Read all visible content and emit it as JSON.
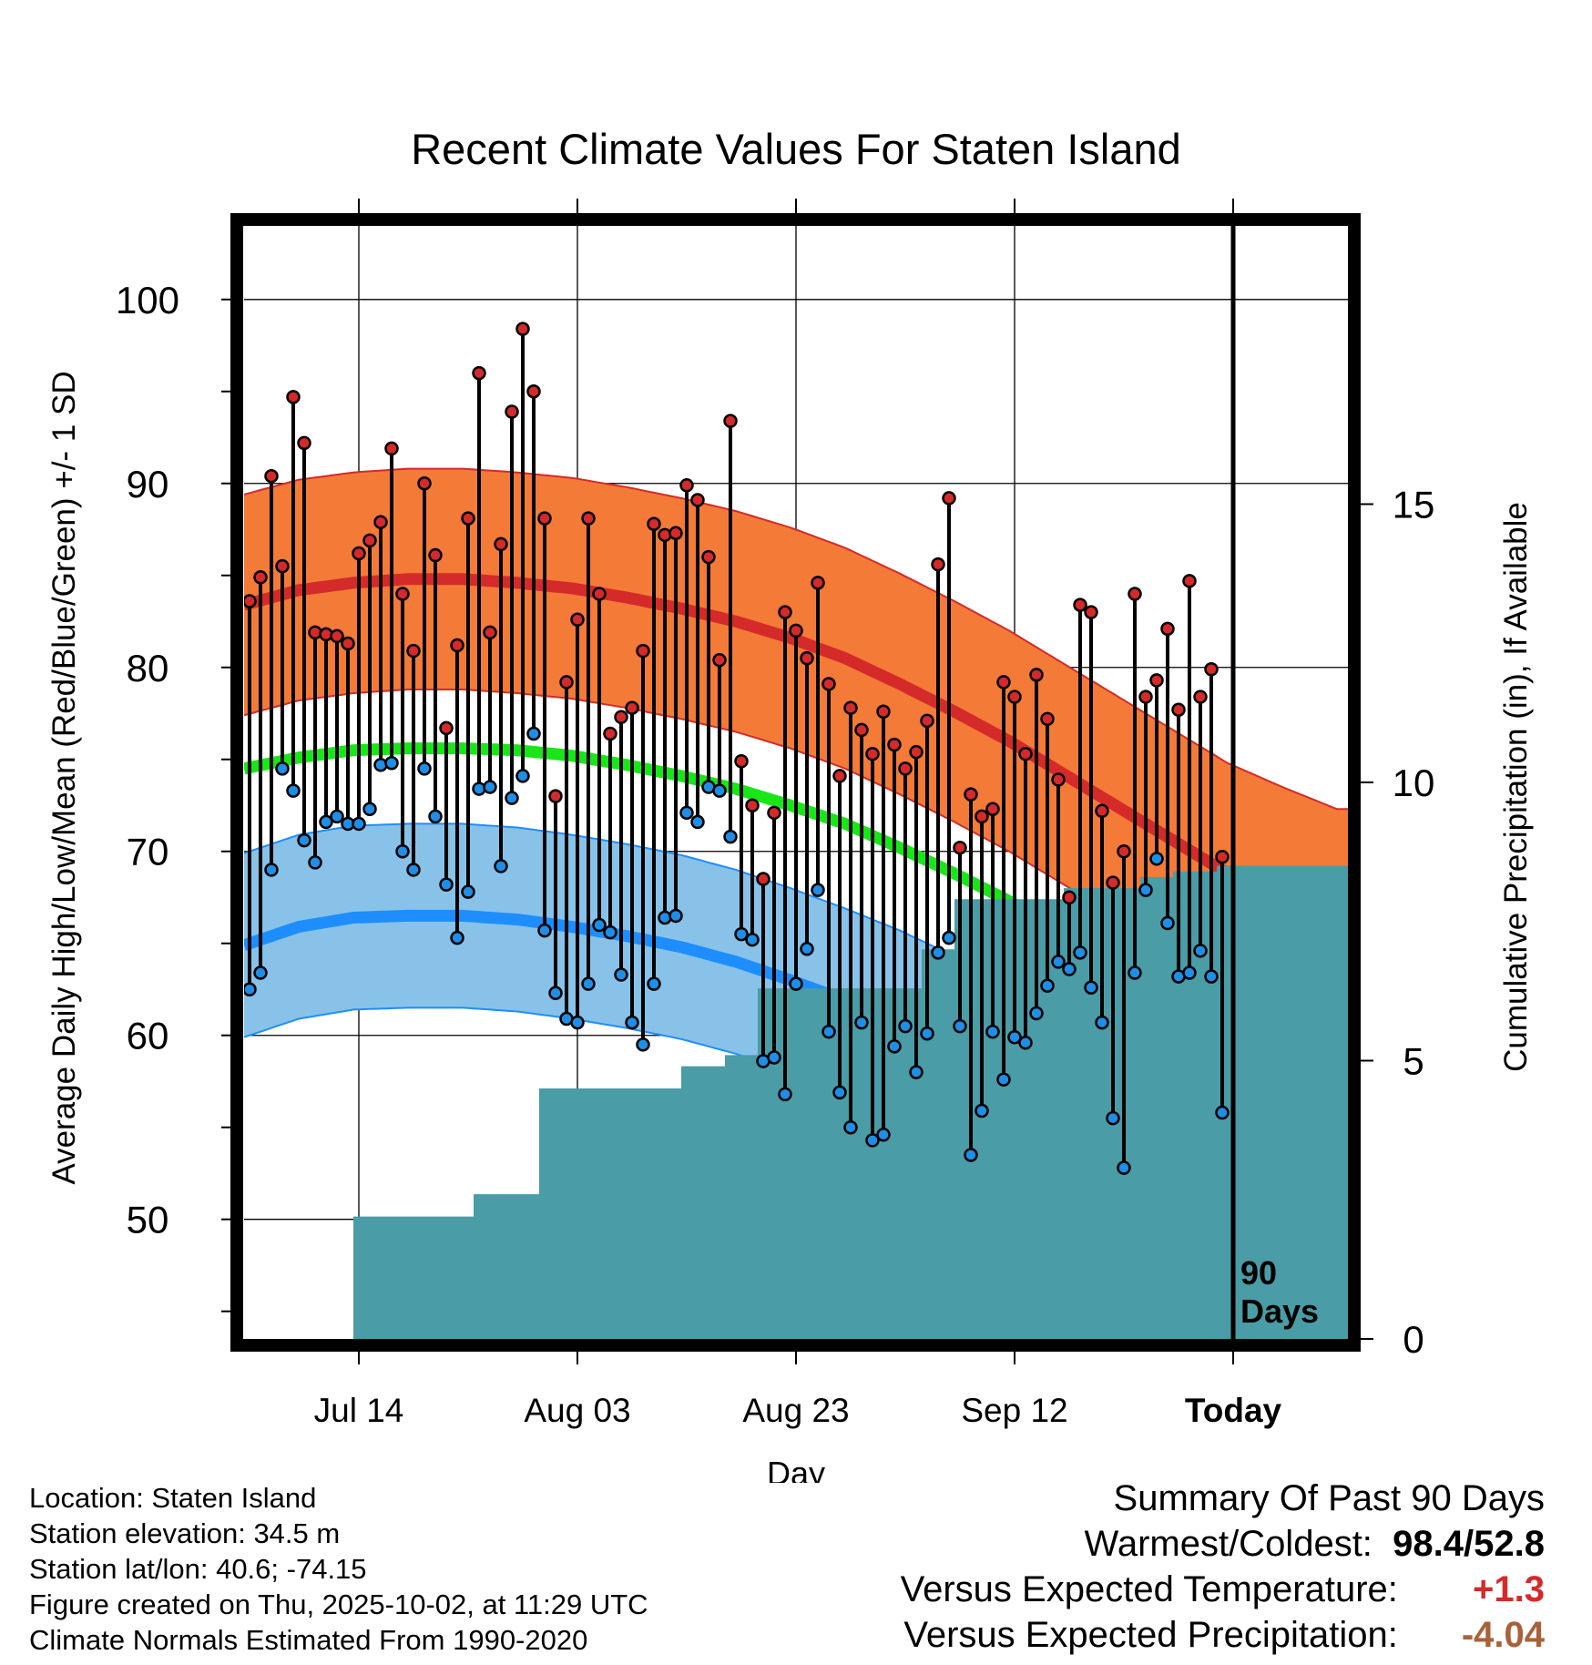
{
  "chart_data": {
    "type": "line",
    "title": "Recent Climate Values For Staten Island",
    "xlabel": "Day",
    "ylabel": "Average Daily High/Low/Mean (Red/Blue/Green) +/- 1 SD",
    "y2label": "Cumulative Precipitation (in), If Available",
    "ylim": [
      43.5,
      104
    ],
    "y2lim": [
      0,
      20
    ],
    "yticks": [
      50,
      60,
      70,
      80,
      90,
      100
    ],
    "y2ticks": [
      0,
      5,
      10,
      15
    ],
    "xlim": [
      0,
      101
    ],
    "xticks": [
      {
        "day": 10.5,
        "label": "Jul 14"
      },
      {
        "day": 30.5,
        "label": "Aug 03"
      },
      {
        "day": 50.5,
        "label": "Aug 23"
      },
      {
        "day": 70.5,
        "label": "Sep 12"
      },
      {
        "day": 90.5,
        "label": "Today"
      }
    ],
    "today_day": 90.5,
    "today_label": [
      "90",
      "Days"
    ],
    "normals": {
      "days": [
        0,
        5,
        10,
        15,
        20,
        25,
        30,
        35,
        40,
        45,
        50,
        55,
        60,
        65,
        70,
        75,
        80,
        85,
        90,
        95,
        100
      ],
      "high_mean": [
        83.4,
        84.2,
        84.6,
        84.8,
        84.8,
        84.6,
        84.3,
        83.8,
        83.2,
        82.5,
        81.6,
        80.5,
        79.1,
        77.6,
        76.0,
        74.2,
        72.4,
        70.6,
        68.8,
        67.5,
        66.3
      ],
      "high_sd": 6.0,
      "low_mean": [
        64.9,
        65.9,
        66.4,
        66.5,
        66.5,
        66.3,
        65.9,
        65.4,
        64.8,
        64.0,
        63.0,
        61.9,
        60.7,
        59.3,
        57.7,
        56.0,
        54.2,
        52.4,
        50.5,
        48.5,
        46.5
      ],
      "low_sd": 5.0,
      "mean": [
        74.5,
        75.1,
        75.5,
        75.6,
        75.6,
        75.5,
        75.2,
        74.7,
        74.1,
        73.4,
        72.5,
        71.5,
        70.2,
        68.8,
        67.3,
        65.6,
        63.8,
        62.0,
        60.3,
        58.8,
        57.4
      ]
    },
    "series": [
      {
        "name": "Daily High",
        "color": "#cc2222",
        "values": [
          83.6,
          84.9,
          90.4,
          85.5,
          94.7,
          92.2,
          81.9,
          81.8,
          81.7,
          81.3,
          86.2,
          86.9,
          87.9,
          91.9,
          84.0,
          80.9,
          90.0,
          86.1,
          76.7,
          81.2,
          88.1,
          96.0,
          81.9,
          86.7,
          93.9,
          98.4,
          95.0,
          88.1,
          73.0,
          79.2,
          82.6,
          88.1,
          84.0,
          76.4,
          77.3,
          77.8,
          80.9,
          87.8,
          87.2,
          87.3,
          89.9,
          89.1,
          86.0,
          80.4,
          93.4,
          74.9,
          72.5,
          68.5,
          72.1,
          83.0,
          82.0,
          80.5,
          84.6,
          79.1,
          74.1,
          77.8,
          76.6,
          75.3,
          77.6,
          75.8,
          74.5,
          75.4,
          77.1,
          85.6,
          89.2,
          70.2,
          73.1,
          71.9,
          72.3,
          79.2,
          78.4,
          75.3,
          79.6,
          77.2,
          73.9,
          67.5,
          83.4,
          83.0,
          72.2,
          68.3,
          70.0,
          84.0,
          78.4,
          79.3,
          82.1,
          77.7,
          84.7,
          78.4,
          79.9,
          69.7
        ]
      },
      {
        "name": "Daily Low",
        "color": "#1e8ee6",
        "values": [
          62.5,
          63.4,
          69.0,
          74.5,
          73.3,
          70.6,
          69.4,
          71.6,
          71.9,
          71.5,
          71.5,
          72.3,
          74.7,
          74.8,
          70.0,
          69.0,
          74.5,
          71.9,
          68.2,
          65.3,
          67.8,
          73.4,
          73.5,
          69.2,
          72.9,
          74.1,
          76.4,
          65.7,
          62.3,
          60.9,
          60.7,
          62.8,
          66.0,
          65.6,
          63.3,
          60.7,
          59.5,
          62.8,
          66.4,
          66.5,
          72.1,
          71.6,
          73.5,
          73.3,
          70.8,
          65.5,
          65.2,
          58.6,
          58.8,
          56.8,
          62.8,
          64.7,
          67.9,
          60.2,
          56.9,
          55.0,
          60.7,
          54.3,
          54.6,
          59.4,
          60.5,
          58.0,
          60.1,
          64.5,
          65.3,
          60.5,
          53.5,
          55.9,
          60.2,
          57.6,
          59.9,
          59.6,
          61.2,
          62.7,
          64.0,
          63.6,
          64.5,
          62.6,
          60.7,
          55.5,
          52.8,
          63.4,
          67.9,
          69.6,
          66.1,
          63.2,
          63.4,
          64.6,
          63.2,
          55.8
        ]
      }
    ],
    "precip_steps": [
      {
        "day": 0,
        "value": 0
      },
      {
        "day": 10,
        "value": 2.2
      },
      {
        "day": 21,
        "value": 2.6
      },
      {
        "day": 27,
        "value": 4.5
      },
      {
        "day": 40,
        "value": 4.9
      },
      {
        "day": 44,
        "value": 5.1
      },
      {
        "day": 47,
        "value": 6.3
      },
      {
        "day": 62,
        "value": 7.0
      },
      {
        "day": 65,
        "value": 7.9
      },
      {
        "day": 75,
        "value": 8.1
      },
      {
        "day": 82,
        "value": 8.3
      },
      {
        "day": 85,
        "value": 8.4
      },
      {
        "day": 89,
        "value": 8.5
      },
      {
        "day": 101,
        "value": 8.5
      }
    ],
    "colors": {
      "high_band": "#f47a38",
      "high_line": "#d42a2a",
      "high_edge": "#d42a2a",
      "low_band": "#88c2e8",
      "low_line": "#1e8eff",
      "low_edge": "#1e8eff",
      "mean_line": "#19e619",
      "precip_fill": "#4a9ca6",
      "high_dot": "#d42a2a",
      "low_dot": "#1e8ee6"
    }
  },
  "info": {
    "location": "Location: Staten Island",
    "elevation": "Station elevation: 34.5 m",
    "latlon": "Station lat/lon: 40.6; -74.15",
    "created": "Figure created on Thu, 2025-10-02, at 11:29 UTC",
    "normals": "Climate Normals Estimated From 1990-2020"
  },
  "summary": {
    "title": "Summary Of Past 90 Days",
    "warm_cold_label": "Warmest/Coldest:",
    "warmest": "98.4",
    "slash": "/",
    "coldest": "52.8",
    "temp_label": "Versus Expected Temperature:",
    "temp_value": "+1.3",
    "precip_label": "Versus Expected Precipitation:",
    "precip_value": "-4.04"
  }
}
